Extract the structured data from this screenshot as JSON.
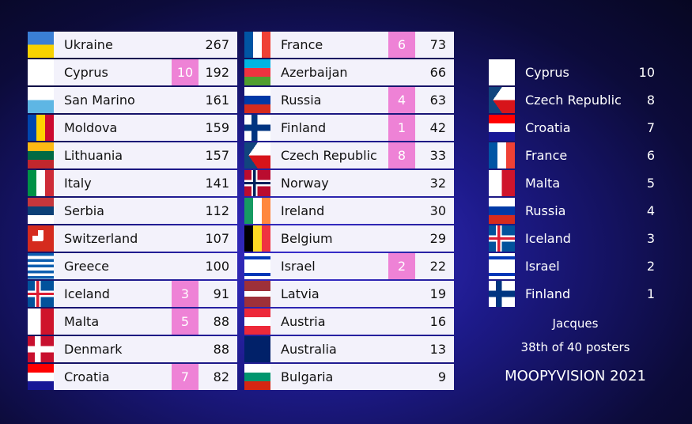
{
  "scoreboard": {
    "left": [
      {
        "country": "Ukraine",
        "total": 267
      },
      {
        "country": "Cyprus",
        "points": 10,
        "total": 192
      },
      {
        "country": "San Marino",
        "total": 161
      },
      {
        "country": "Moldova",
        "total": 159
      },
      {
        "country": "Lithuania",
        "total": 157
      },
      {
        "country": "Italy",
        "total": 141
      },
      {
        "country": "Serbia",
        "total": 112
      },
      {
        "country": "Switzerland",
        "total": 107
      },
      {
        "country": "Greece",
        "total": 100
      },
      {
        "country": "Iceland",
        "points": 3,
        "total": 91
      },
      {
        "country": "Malta",
        "points": 5,
        "total": 88
      },
      {
        "country": "Denmark",
        "total": 88
      },
      {
        "country": "Croatia",
        "points": 7,
        "total": 82
      }
    ],
    "middle": [
      {
        "country": "France",
        "points": 6,
        "total": 73
      },
      {
        "country": "Azerbaijan",
        "total": 66
      },
      {
        "country": "Russia",
        "points": 4,
        "total": 63
      },
      {
        "country": "Finland",
        "points": 1,
        "total": 42
      },
      {
        "country": "Czech Republic",
        "points": 8,
        "total": 33
      },
      {
        "country": "Norway",
        "total": 32
      },
      {
        "country": "Ireland",
        "total": 30
      },
      {
        "country": "Belgium",
        "total": 29
      },
      {
        "country": "Israel",
        "points": 2,
        "total": 22
      },
      {
        "country": "Latvia",
        "total": 19
      },
      {
        "country": "Austria",
        "total": 16
      },
      {
        "country": "Australia",
        "total": 13
      },
      {
        "country": "Bulgaria",
        "total": 9
      }
    ],
    "votes": [
      {
        "country": "Cyprus",
        "points": 10
      },
      {
        "country": "Czech Republic",
        "points": 8
      },
      {
        "country": "Croatia",
        "points": 7
      },
      {
        "country": "France",
        "points": 6
      },
      {
        "country": "Malta",
        "points": 5
      },
      {
        "country": "Russia",
        "points": 4
      },
      {
        "country": "Iceland",
        "points": 3
      },
      {
        "country": "Israel",
        "points": 2
      },
      {
        "country": "Finland",
        "points": 1
      }
    ],
    "voter": "Jacques",
    "rank": "38th of 40 posters",
    "event": "MOOPYVISION 2021"
  }
}
